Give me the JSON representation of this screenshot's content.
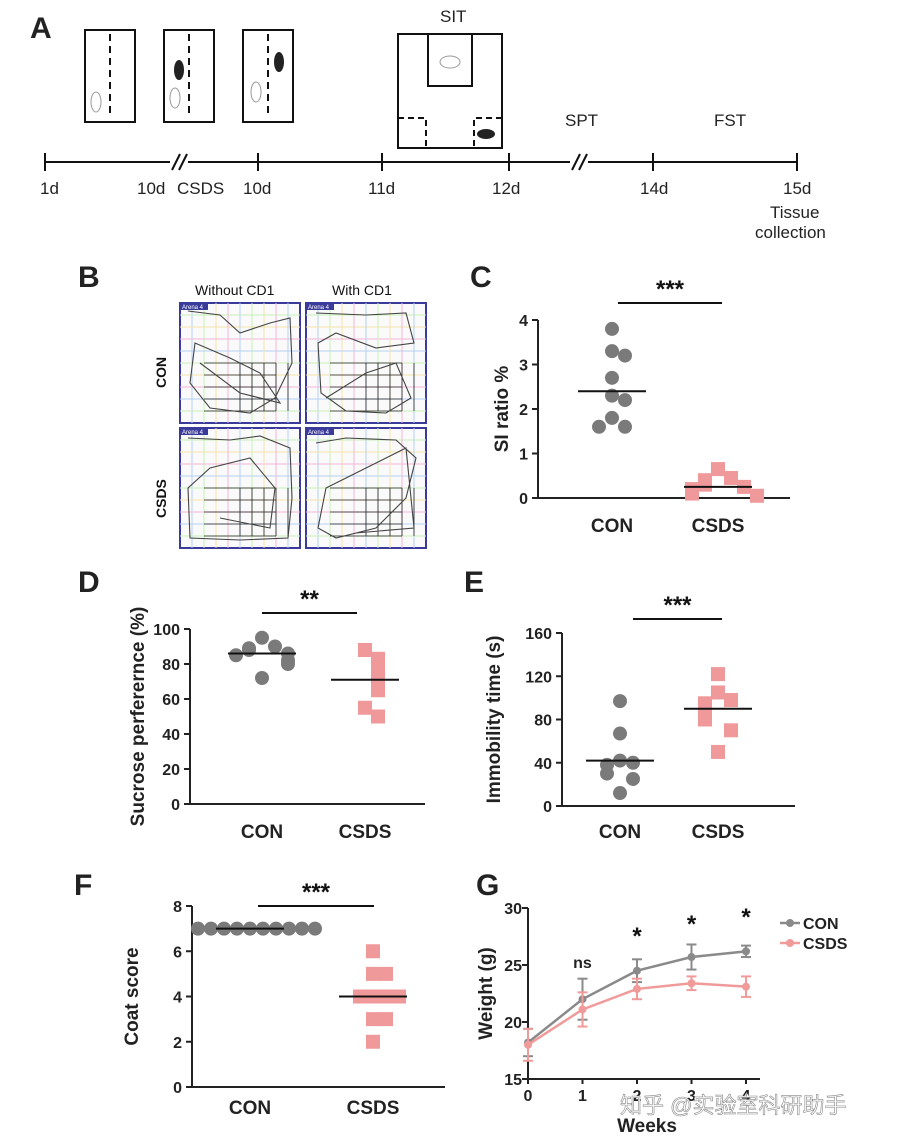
{
  "panels": {
    "A": {
      "letter": "A",
      "labels": {
        "csds": "CSDS",
        "sit": "SIT",
        "spt": "SPT",
        "fst": "FST",
        "tissue1": "Tissue",
        "tissue2": "collection"
      },
      "days": [
        "1d",
        "10d",
        "10d",
        "11d",
        "12d",
        "14d",
        "15d"
      ]
    },
    "B": {
      "letter": "B",
      "col1": "Without CD1",
      "col2": "With CD1",
      "row1": "CON",
      "row2": "CSDS",
      "arena": "Arena 4"
    },
    "C": {
      "letter": "C"
    },
    "D": {
      "letter": "D"
    },
    "E": {
      "letter": "E"
    },
    "F": {
      "letter": "F"
    },
    "G": {
      "letter": "G"
    }
  },
  "colors": {
    "con": "#7a7a7a",
    "csds": "#f0999b",
    "line_con": "#8a8a8a",
    "line_csds": "#f09a9a"
  },
  "watermark": "知乎 @实验室科研助手",
  "chart_data": [
    {
      "id": "C",
      "type": "scatter",
      "ylabel": "SI ratio %",
      "categories": [
        "CON",
        "CSDS"
      ],
      "ylim": [
        0,
        4
      ],
      "yticks": [
        0,
        1,
        2,
        3,
        4
      ],
      "significance": "***",
      "series": [
        {
          "name": "CON",
          "values": [
            3.8,
            3.3,
            3.2,
            2.7,
            2.3,
            2.2,
            1.8,
            1.6,
            1.6
          ],
          "mean": 2.4
        },
        {
          "name": "CSDS",
          "values": [
            0.65,
            0.45,
            0.4,
            0.3,
            0.25,
            0.2,
            0.15,
            0.1,
            0.05
          ],
          "mean": 0.25
        }
      ]
    },
    {
      "id": "D",
      "type": "scatter",
      "ylabel": "Sucrose perferernce (%)",
      "categories": [
        "CON",
        "CSDS"
      ],
      "ylim": [
        0,
        100
      ],
      "yticks": [
        0,
        20,
        40,
        60,
        80,
        100
      ],
      "significance": "**",
      "series": [
        {
          "name": "CON",
          "values": [
            95,
            90,
            89,
            88,
            86,
            85,
            82,
            80,
            72
          ],
          "mean": 86
        },
        {
          "name": "CSDS",
          "values": [
            88,
            83,
            80,
            75,
            70,
            65,
            55,
            50
          ],
          "mean": 71
        }
      ]
    },
    {
      "id": "E",
      "type": "scatter",
      "ylabel": "Immobility time (s)",
      "categories": [
        "CON",
        "CSDS"
      ],
      "ylim": [
        0,
        160
      ],
      "yticks": [
        0,
        40,
        80,
        120,
        160
      ],
      "significance": "***",
      "series": [
        {
          "name": "CON",
          "values": [
            97,
            67,
            42,
            40,
            38,
            30,
            25,
            12
          ],
          "mean": 42
        },
        {
          "name": "CSDS",
          "values": [
            122,
            105,
            98,
            95,
            90,
            85,
            80,
            70,
            50
          ],
          "mean": 90
        }
      ]
    },
    {
      "id": "F",
      "type": "scatter",
      "ylabel": "Coat score",
      "categories": [
        "CON",
        "CSDS"
      ],
      "ylim": [
        0,
        8
      ],
      "yticks": [
        0,
        2,
        4,
        6,
        8
      ],
      "significance": "***",
      "series": [
        {
          "name": "CON",
          "values": [
            7,
            7,
            7,
            7,
            7,
            7,
            7,
            7,
            7,
            7
          ],
          "mean": 7
        },
        {
          "name": "CSDS",
          "values": [
            6,
            5,
            5,
            4,
            4,
            4,
            4,
            3,
            3,
            2
          ],
          "mean": 4
        }
      ]
    },
    {
      "id": "G",
      "type": "line",
      "xlabel": "Weeks",
      "ylabel": "Weight (g)",
      "x": [
        0,
        1,
        2,
        3,
        4
      ],
      "ylim": [
        15,
        30
      ],
      "yticks": [
        15,
        20,
        25,
        30
      ],
      "annotations": [
        "ns",
        "*",
        "*",
        "*"
      ],
      "series": [
        {
          "name": "CON",
          "values": [
            18.2,
            22.0,
            24.5,
            25.7,
            26.2
          ],
          "err": [
            1.2,
            1.8,
            1.0,
            1.1,
            0.5
          ]
        },
        {
          "name": "CSDS",
          "values": [
            18.0,
            21.1,
            22.9,
            23.4,
            23.1
          ],
          "err": [
            1.4,
            1.5,
            0.9,
            0.6,
            0.9
          ]
        }
      ]
    }
  ]
}
